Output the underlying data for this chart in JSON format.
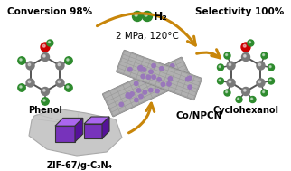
{
  "bg_color": "#ffffff",
  "title_left": "Conversion 98%",
  "title_right": "Selectivity 100%",
  "label_phenol": "Phenol",
  "label_cyclohexanol": "Cyclohexanol",
  "label_catalyst": "Co/NPCN",
  "label_precursor": "ZIF-67/g-C₃N₄",
  "label_conditions": "2 MPa, 120°C",
  "label_h2": "H₂",
  "arrow_color": "#C8860A",
  "carbon_color": "#7a7a7a",
  "green_color": "#2E8B2E",
  "red_color": "#CC0000",
  "purple_color": "#8844BB",
  "nanotube_gray": "#B0B0B0",
  "nanotube_purple": "#9977BB",
  "zif_gray_light": "#CCCCCC",
  "zif_gray_mid": "#AAAAAA",
  "zif_purple_main": "#7733BB",
  "zif_purple_light": "#AA66EE",
  "zif_purple_dark": "#551199"
}
